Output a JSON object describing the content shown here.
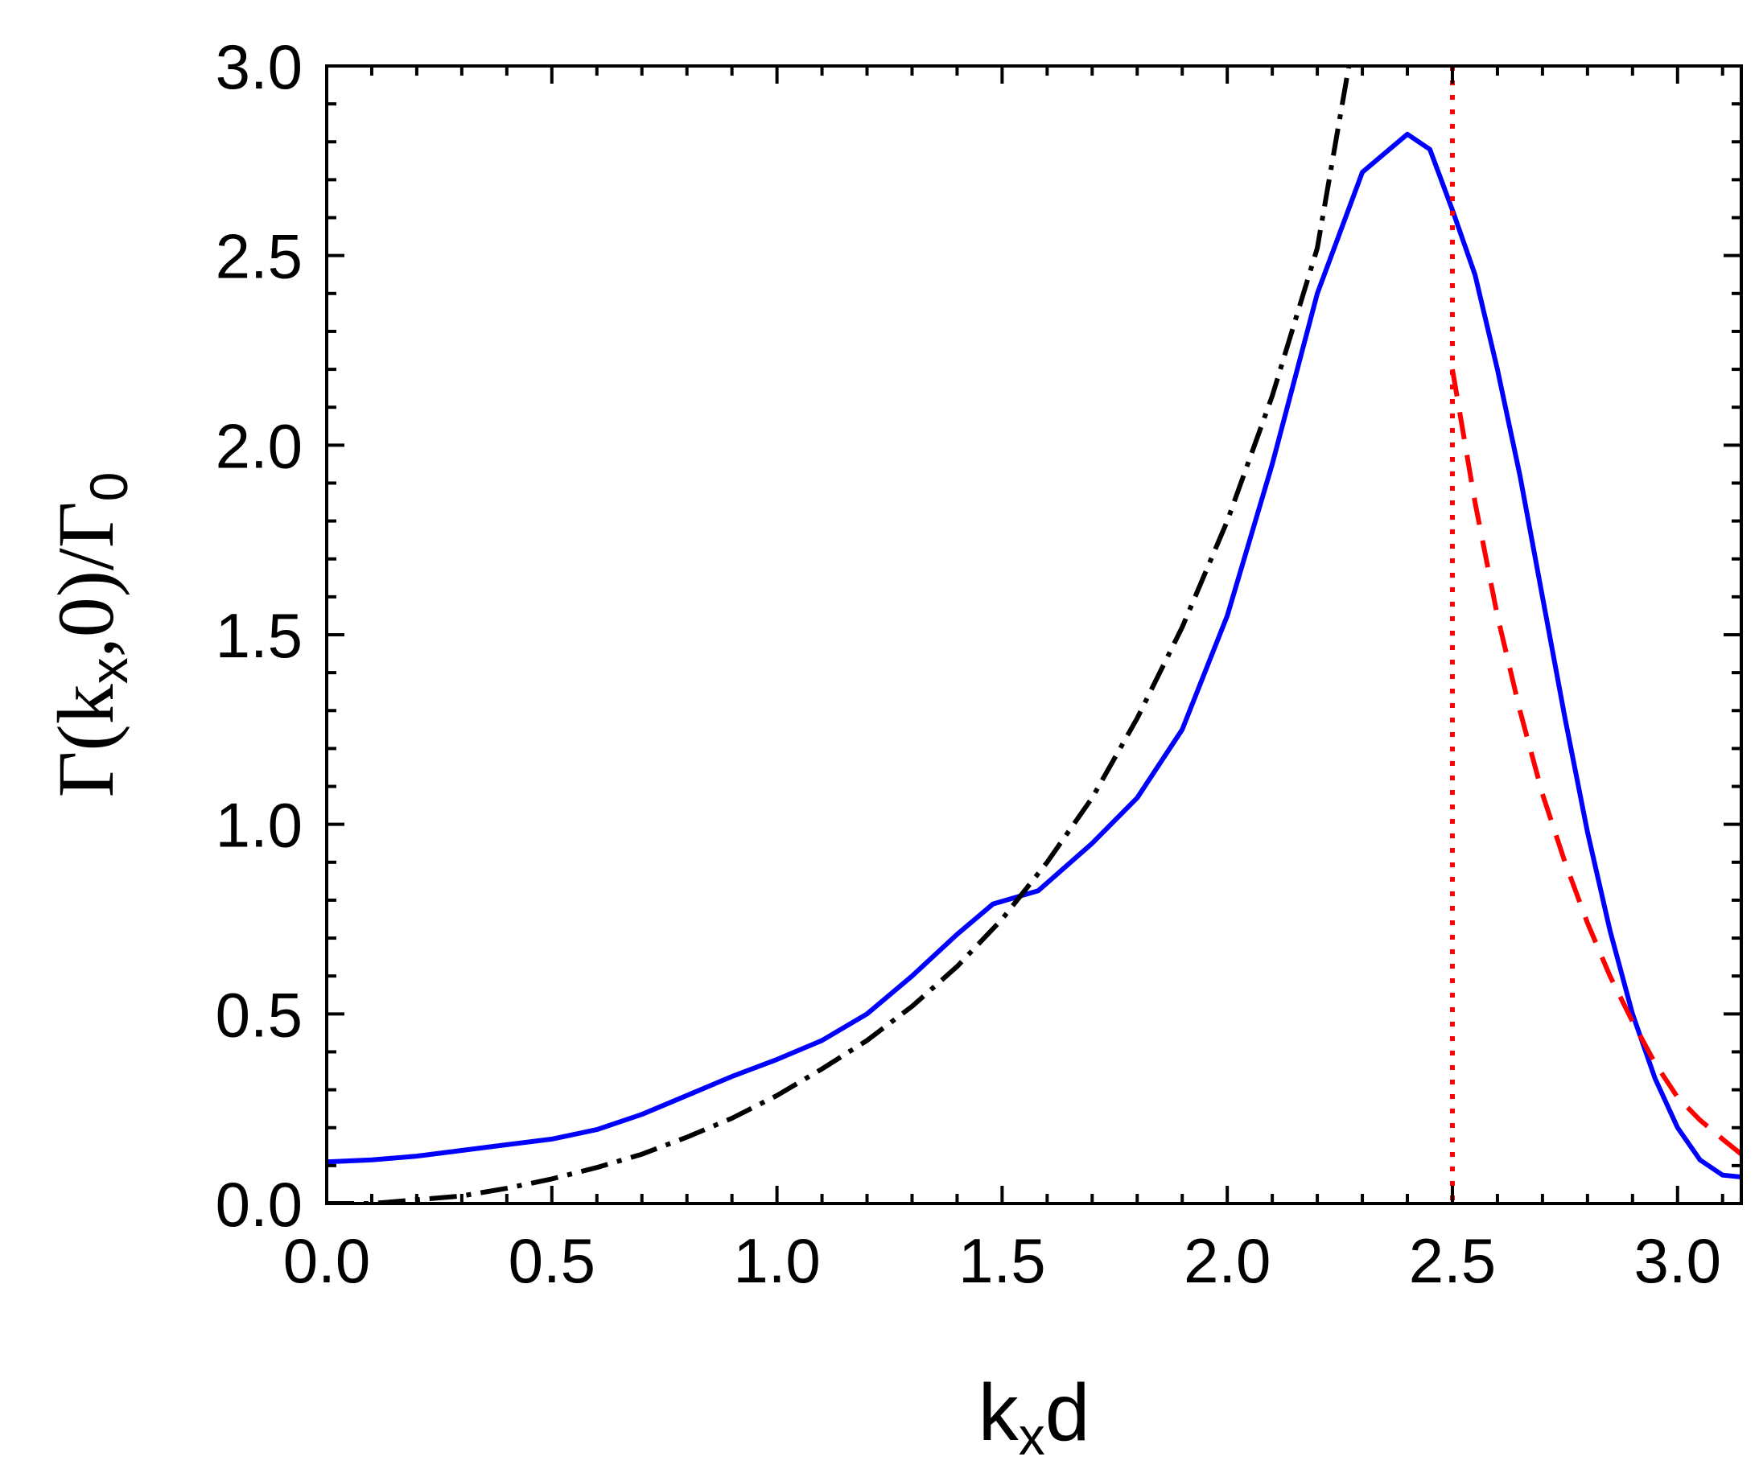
{
  "chart_data": {
    "type": "line",
    "xlabel": {
      "main": "k",
      "sub": "x",
      "tail": "d"
    },
    "ylabel": {
      "g1": "Γ(k",
      "sub1": "x",
      "mid": ",0)/Γ",
      "sub2": "0"
    },
    "xlim": [
      0,
      3.14159
    ],
    "ylim": [
      0,
      3.0
    ],
    "x_ticks": [
      "0.0",
      "0.5",
      "1.0",
      "1.5",
      "2.0",
      "2.5",
      "3.0"
    ],
    "x_tick_values": [
      0,
      0.5,
      1.0,
      1.5,
      2.0,
      2.5,
      3.0
    ],
    "y_ticks": [
      "0.0",
      "0.5",
      "1.0",
      "1.5",
      "2.0",
      "2.5",
      "3.0"
    ],
    "y_tick_values": [
      0,
      0.5,
      1.0,
      1.5,
      2.0,
      2.5,
      3.0
    ],
    "vline_x": 2.5,
    "grid": false,
    "series": [
      {
        "style": "solid",
        "color": "#0000ff",
        "points": [
          [
            0.0,
            0.11
          ],
          [
            0.1,
            0.115
          ],
          [
            0.2,
            0.125
          ],
          [
            0.3,
            0.14
          ],
          [
            0.4,
            0.155
          ],
          [
            0.5,
            0.17
          ],
          [
            0.6,
            0.195
          ],
          [
            0.7,
            0.235
          ],
          [
            0.8,
            0.285
          ],
          [
            0.9,
            0.335
          ],
          [
            1.0,
            0.38
          ],
          [
            1.1,
            0.43
          ],
          [
            1.2,
            0.5
          ],
          [
            1.3,
            0.6
          ],
          [
            1.4,
            0.71
          ],
          [
            1.48,
            0.79
          ],
          [
            1.58,
            0.825
          ],
          [
            1.7,
            0.95
          ],
          [
            1.8,
            1.07
          ],
          [
            1.9,
            1.25
          ],
          [
            2.0,
            1.55
          ],
          [
            2.1,
            1.95
          ],
          [
            2.2,
            2.4
          ],
          [
            2.3,
            2.72
          ],
          [
            2.4,
            2.82
          ],
          [
            2.45,
            2.78
          ],
          [
            2.5,
            2.62
          ],
          [
            2.55,
            2.45
          ],
          [
            2.6,
            2.2
          ],
          [
            2.65,
            1.92
          ],
          [
            2.7,
            1.6
          ],
          [
            2.75,
            1.28
          ],
          [
            2.8,
            0.98
          ],
          [
            2.85,
            0.72
          ],
          [
            2.9,
            0.5
          ],
          [
            2.95,
            0.33
          ],
          [
            3.0,
            0.2
          ],
          [
            3.05,
            0.115
          ],
          [
            3.1,
            0.075
          ],
          [
            3.14159,
            0.07
          ]
        ]
      },
      {
        "style": "dashdot",
        "color": "#000000",
        "points": [
          [
            0.0,
            0.0
          ],
          [
            0.1,
            0.0
          ],
          [
            0.2,
            0.01
          ],
          [
            0.3,
            0.02
          ],
          [
            0.4,
            0.04
          ],
          [
            0.5,
            0.065
          ],
          [
            0.6,
            0.095
          ],
          [
            0.7,
            0.13
          ],
          [
            0.8,
            0.175
          ],
          [
            0.9,
            0.225
          ],
          [
            1.0,
            0.285
          ],
          [
            1.1,
            0.355
          ],
          [
            1.2,
            0.43
          ],
          [
            1.3,
            0.52
          ],
          [
            1.4,
            0.625
          ],
          [
            1.5,
            0.75
          ],
          [
            1.6,
            0.9
          ],
          [
            1.7,
            1.07
          ],
          [
            1.8,
            1.28
          ],
          [
            1.9,
            1.52
          ],
          [
            2.0,
            1.8
          ],
          [
            2.1,
            2.13
          ],
          [
            2.2,
            2.52
          ],
          [
            2.27,
            3.0
          ]
        ]
      },
      {
        "style": "dashed",
        "color": "#ff0000",
        "points": [
          [
            2.5,
            2.2
          ],
          [
            2.55,
            1.85
          ],
          [
            2.6,
            1.55
          ],
          [
            2.65,
            1.3
          ],
          [
            2.7,
            1.08
          ],
          [
            2.75,
            0.9
          ],
          [
            2.8,
            0.74
          ],
          [
            2.85,
            0.6
          ],
          [
            2.9,
            0.48
          ],
          [
            2.95,
            0.37
          ],
          [
            3.0,
            0.28
          ],
          [
            3.05,
            0.22
          ],
          [
            3.1,
            0.17
          ],
          [
            3.14159,
            0.13
          ]
        ]
      }
    ]
  }
}
